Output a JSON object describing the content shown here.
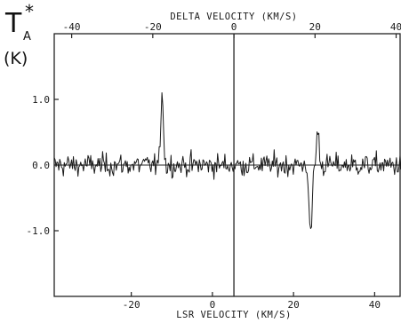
{
  "chart_data": {
    "type": "line",
    "title": "",
    "ylabel_main": "T",
    "ylabel_sub": "A",
    "ylabel_sup": "*",
    "ylabel_unit": "(K)",
    "xlabel_bottom": "LSR VELOCITY (KM/S)",
    "xlabel_top": "DELTA VELOCITY (KM/S)",
    "xlim_bottom": [
      -39,
      46.5
    ],
    "xlim_top": [
      -44.3,
      41.2
    ],
    "ylim": [
      -2.0,
      2.0
    ],
    "x_ticks_bottom": [
      -20,
      0,
      20,
      40
    ],
    "x_tick_labels_bottom": [
      "-20",
      "0",
      "20",
      "40"
    ],
    "x_ticks_top": [
      -40,
      -20,
      0,
      20,
      40
    ],
    "x_tick_labels_top": [
      "-40",
      "-20",
      "0",
      "20",
      "40"
    ],
    "y_ticks": [
      1.0,
      0.0,
      -1.0
    ],
    "y_tick_labels": [
      "1.0",
      "0.0",
      "-1.0"
    ],
    "zero_line": true,
    "vertical_marker_x": 5.3,
    "series": [
      {
        "noise_rms": 0.12,
        "features": [
          {
            "kind": "emission",
            "center": -12.4,
            "peak": 1.2
          },
          {
            "kind": "emission",
            "center": 26.0,
            "peak": 0.55
          },
          {
            "kind": "absorption",
            "center": 24.2,
            "peak": -1.15
          }
        ]
      }
    ]
  }
}
